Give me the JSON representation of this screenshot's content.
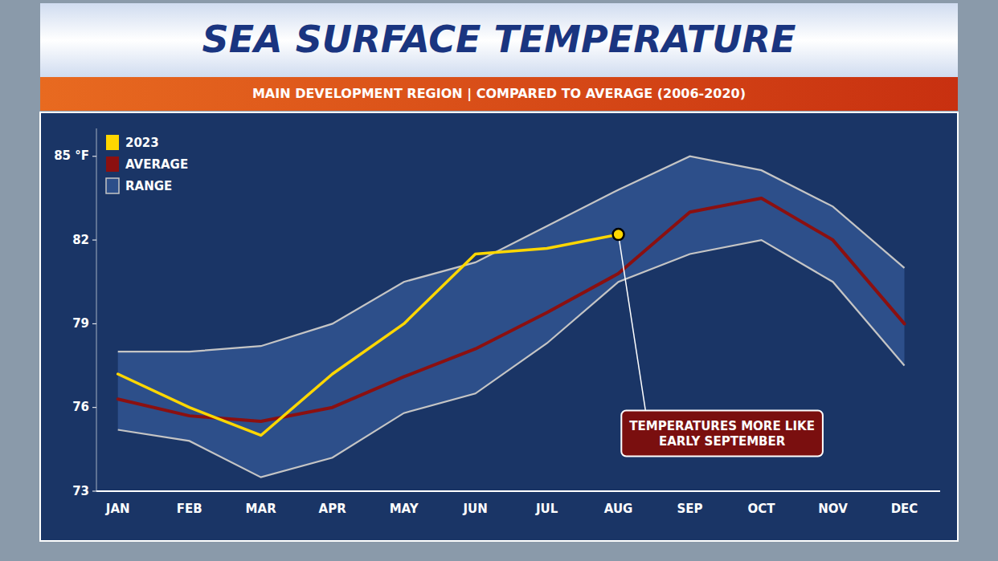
{
  "chart_data": {
    "type": "line",
    "title": "SEA SURFACE TEMPERATURE",
    "subtitle": "MAIN DEVELOPMENT REGION | COMPARED TO AVERAGE (2006-2020)",
    "annotation": "TEMPERATURES MORE LIKE\nEARLY SEPTEMBER",
    "categories": [
      "JAN",
      "FEB",
      "MAR",
      "APR",
      "MAY",
      "JUN",
      "JUL",
      "AUG",
      "SEP",
      "OCT",
      "NOV",
      "DEC"
    ],
    "series": [
      {
        "name": "2023",
        "color": "#FFD700",
        "values": [
          77.2,
          76.0,
          75.0,
          77.2,
          79.0,
          81.5,
          81.7,
          82.2,
          null,
          null,
          null,
          null
        ]
      },
      {
        "name": "AVERAGE",
        "color": "#8B1010",
        "values": [
          76.3,
          75.7,
          75.5,
          76.0,
          77.1,
          78.1,
          79.4,
          80.8,
          83.0,
          83.5,
          82.0,
          79.0
        ]
      },
      {
        "name": "RANGE",
        "type": "area",
        "color": "#2d4f8a",
        "low": [
          75.2,
          74.8,
          73.5,
          74.2,
          75.8,
          76.5,
          78.3,
          80.5,
          81.5,
          82.0,
          80.5,
          77.5
        ],
        "high": [
          78.0,
          78.0,
          78.2,
          79.0,
          80.5,
          81.2,
          82.5,
          83.8,
          85.0,
          84.5,
          83.2,
          81.0
        ]
      }
    ],
    "ylim": [
      73,
      86
    ],
    "yticks": [
      73,
      76,
      79,
      82,
      {
        "value": 85,
        "label": "85 °F"
      }
    ],
    "grid": false,
    "legend": "upper left"
  }
}
